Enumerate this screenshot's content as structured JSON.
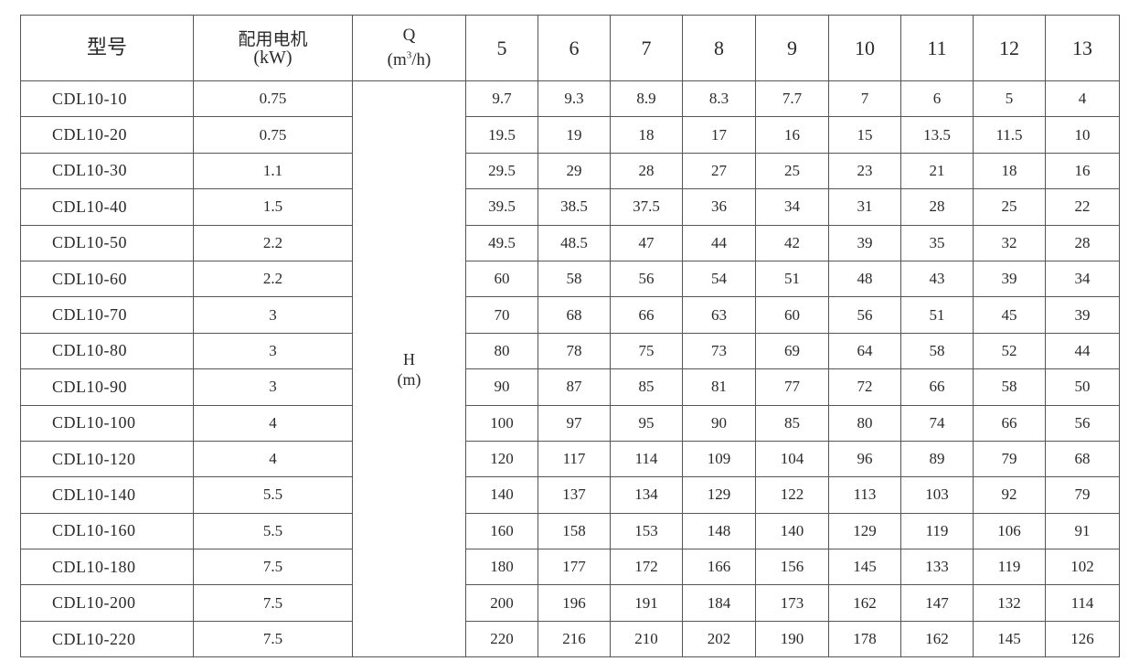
{
  "header": {
    "model_label": "型号",
    "motor_label": "配用电机",
    "motor_unit": "(kW)",
    "flow_label": "Q",
    "flow_unit_prefix": "(m",
    "flow_unit_sup": "3",
    "flow_unit_suffix": "/h)",
    "flow_values": [
      "5",
      "6",
      "7",
      "8",
      "9",
      "10",
      "11",
      "12",
      "13"
    ]
  },
  "head_label": "H",
  "head_unit": "(m)",
  "rows": [
    {
      "model": "CDL10-10",
      "power": "0.75",
      "h": [
        "9.7",
        "9.3",
        "8.9",
        "8.3",
        "7.7",
        "7",
        "6",
        "5",
        "4"
      ]
    },
    {
      "model": "CDL10-20",
      "power": "0.75",
      "h": [
        "19.5",
        "19",
        "18",
        "17",
        "16",
        "15",
        "13.5",
        "11.5",
        "10"
      ]
    },
    {
      "model": "CDL10-30",
      "power": "1.1",
      "h": [
        "29.5",
        "29",
        "28",
        "27",
        "25",
        "23",
        "21",
        "18",
        "16"
      ]
    },
    {
      "model": "CDL10-40",
      "power": "1.5",
      "h": [
        "39.5",
        "38.5",
        "37.5",
        "36",
        "34",
        "31",
        "28",
        "25",
        "22"
      ]
    },
    {
      "model": "CDL10-50",
      "power": "2.2",
      "h": [
        "49.5",
        "48.5",
        "47",
        "44",
        "42",
        "39",
        "35",
        "32",
        "28"
      ]
    },
    {
      "model": "CDL10-60",
      "power": "2.2",
      "h": [
        "60",
        "58",
        "56",
        "54",
        "51",
        "48",
        "43",
        "39",
        "34"
      ]
    },
    {
      "model": "CDL10-70",
      "power": "3",
      "h": [
        "70",
        "68",
        "66",
        "63",
        "60",
        "56",
        "51",
        "45",
        "39"
      ]
    },
    {
      "model": "CDL10-80",
      "power": "3",
      "h": [
        "80",
        "78",
        "75",
        "73",
        "69",
        "64",
        "58",
        "52",
        "44"
      ]
    },
    {
      "model": "CDL10-90",
      "power": "3",
      "h": [
        "90",
        "87",
        "85",
        "81",
        "77",
        "72",
        "66",
        "58",
        "50"
      ]
    },
    {
      "model": "CDL10-100",
      "power": "4",
      "h": [
        "100",
        "97",
        "95",
        "90",
        "85",
        "80",
        "74",
        "66",
        "56"
      ]
    },
    {
      "model": "CDL10-120",
      "power": "4",
      "h": [
        "120",
        "117",
        "114",
        "109",
        "104",
        "96",
        "89",
        "79",
        "68"
      ]
    },
    {
      "model": "CDL10-140",
      "power": "5.5",
      "h": [
        "140",
        "137",
        "134",
        "129",
        "122",
        "113",
        "103",
        "92",
        "79"
      ]
    },
    {
      "model": "CDL10-160",
      "power": "5.5",
      "h": [
        "160",
        "158",
        "153",
        "148",
        "140",
        "129",
        "119",
        "106",
        "91"
      ]
    },
    {
      "model": "CDL10-180",
      "power": "7.5",
      "h": [
        "180",
        "177",
        "172",
        "166",
        "156",
        "145",
        "133",
        "119",
        "102"
      ]
    },
    {
      "model": "CDL10-200",
      "power": "7.5",
      "h": [
        "200",
        "196",
        "191",
        "184",
        "173",
        "162",
        "147",
        "132",
        "114"
      ]
    },
    {
      "model": "CDL10-220",
      "power": "7.5",
      "h": [
        "220",
        "216",
        "210",
        "202",
        "190",
        "178",
        "162",
        "145",
        "126"
      ]
    }
  ]
}
